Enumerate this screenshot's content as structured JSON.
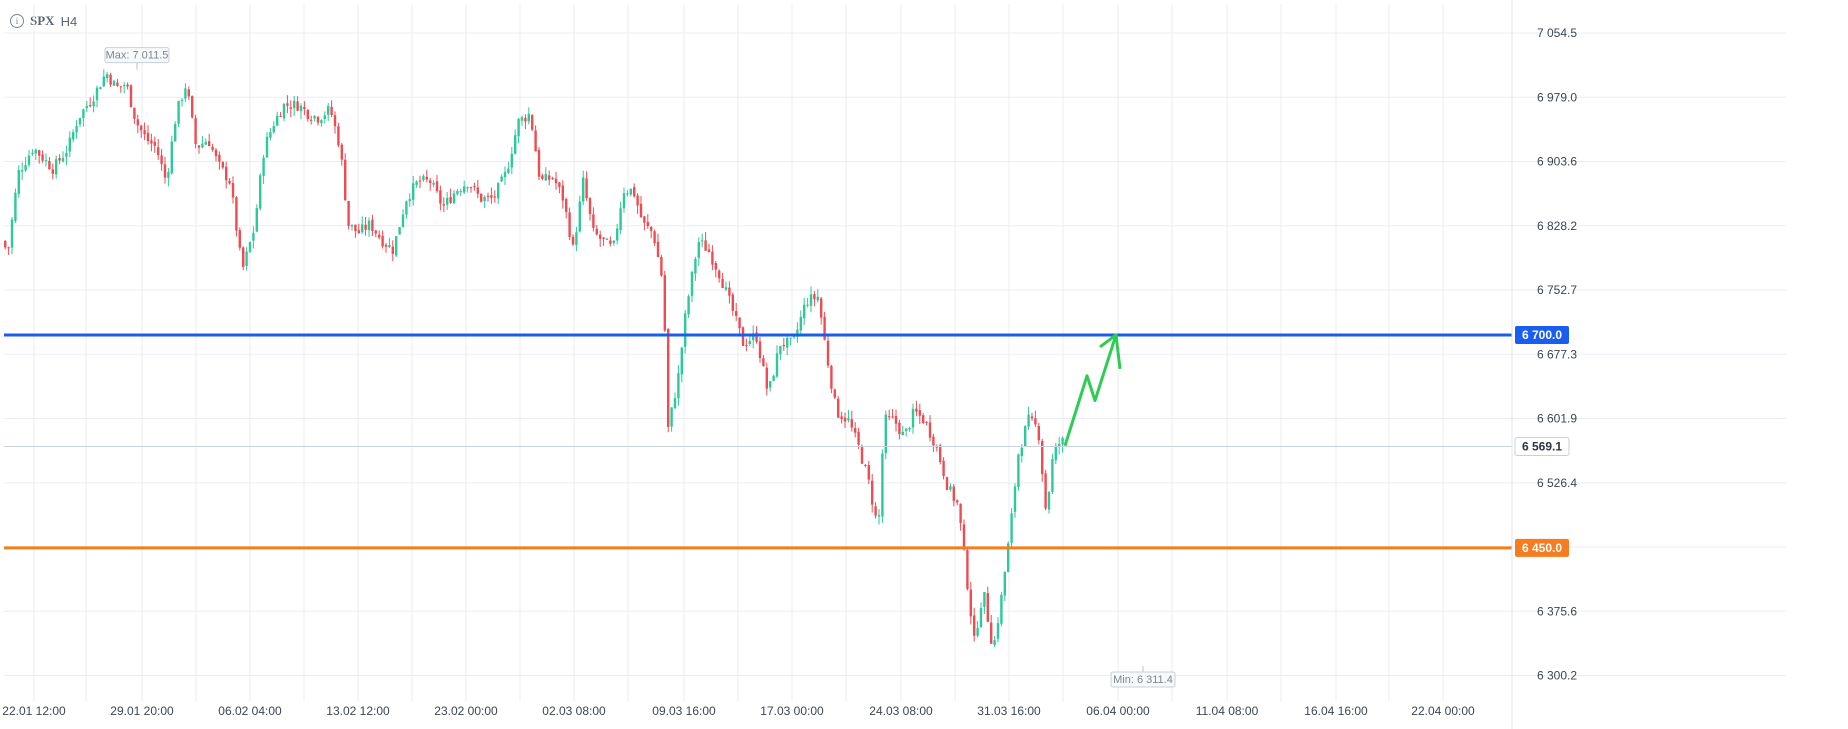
{
  "header": {
    "info_icon": "info-icon",
    "symbol": "SPX",
    "timeframe": "H4"
  },
  "chart_data": {
    "type": "candlestick",
    "symbol": "SPX",
    "timeframe": "H4",
    "x_tick_labels": [
      "22.01 12:00",
      "29.01 20:00",
      "06.02 04:00",
      "13.02 12:00",
      "23.02 00:00",
      "02.03 08:00",
      "09.03 16:00",
      "17.03 00:00",
      "24.03 08:00",
      "31.03 16:00",
      "06.04 00:00",
      "11.04 08:00",
      "16.04 16:00",
      "22.04 00:00"
    ],
    "y_tick_labels": [
      "7 054.5",
      "6 979.0",
      "6 903.6",
      "6 828.2",
      "6 752.7",
      "6 677.3",
      "6 601.9",
      "6 526.4",
      "6 375.6",
      "6 300.2"
    ],
    "y_ticks": [
      7054.5,
      6979.0,
      6903.6,
      6828.2,
      6752.7,
      6677.3,
      6601.9,
      6526.4,
      6451.0,
      6375.6,
      6300.2
    ],
    "ylim": [
      6290,
      7070
    ],
    "grid": true,
    "max_label": "Max: 7 011.5",
    "max_value": 7011.5,
    "min_label": "Min: 6 311.4",
    "min_value": 6311.4,
    "current_price_label": "6 569.1",
    "current_price": 6569.1,
    "levels": [
      {
        "label": "6 700.0",
        "value": 6700.0,
        "color": "#1a5ef0"
      },
      {
        "label": "6 450.0",
        "value": 6450.0,
        "color": "#f57c1f"
      }
    ],
    "projection_arrow": {
      "color": "#2ecc52",
      "points": [
        [
          1065,
          6570
        ],
        [
          1087,
          6652
        ],
        [
          1095,
          6623
        ],
        [
          1116,
          6700
        ]
      ]
    },
    "anchors": [
      [
        0,
        6810
      ],
      [
        10,
        6800
      ],
      [
        20,
        6890
      ],
      [
        35,
        6920
      ],
      [
        55,
        6895
      ],
      [
        70,
        6920
      ],
      [
        80,
        6955
      ],
      [
        95,
        6980
      ],
      [
        108,
        7008
      ],
      [
        118,
        6990
      ],
      [
        128,
        6995
      ],
      [
        138,
        6950
      ],
      [
        148,
        6930
      ],
      [
        158,
        6920
      ],
      [
        168,
        6880
      ],
      [
        178,
        6960
      ],
      [
        188,
        6995
      ],
      [
        198,
        6920
      ],
      [
        210,
        6930
      ],
      [
        220,
        6900
      ],
      [
        232,
        6880
      ],
      [
        244,
        6775
      ],
      [
        256,
        6825
      ],
      [
        266,
        6920
      ],
      [
        276,
        6950
      ],
      [
        286,
        6970
      ],
      [
        300,
        6970
      ],
      [
        310,
        6960
      ],
      [
        320,
        6955
      ],
      [
        332,
        6965
      ],
      [
        342,
        6920
      ],
      [
        350,
        6830
      ],
      [
        360,
        6820
      ],
      [
        372,
        6830
      ],
      [
        385,
        6810
      ],
      [
        395,
        6800
      ],
      [
        408,
        6860
      ],
      [
        420,
        6880
      ],
      [
        432,
        6880
      ],
      [
        445,
        6850
      ],
      [
        458,
        6870
      ],
      [
        470,
        6880
      ],
      [
        482,
        6860
      ],
      [
        495,
        6860
      ],
      [
        508,
        6890
      ],
      [
        520,
        6950
      ],
      [
        532,
        6960
      ],
      [
        542,
        6880
      ],
      [
        555,
        6885
      ],
      [
        565,
        6860
      ],
      [
        575,
        6800
      ],
      [
        585,
        6880
      ],
      [
        595,
        6820
      ],
      [
        605,
        6810
      ],
      [
        615,
        6800
      ],
      [
        625,
        6870
      ],
      [
        635,
        6870
      ],
      [
        645,
        6830
      ],
      [
        655,
        6820
      ],
      [
        665,
        6760
      ],
      [
        670,
        6590
      ],
      [
        680,
        6650
      ],
      [
        688,
        6730
      ],
      [
        700,
        6810
      ],
      [
        710,
        6800
      ],
      [
        722,
        6770
      ],
      [
        734,
        6730
      ],
      [
        745,
        6690
      ],
      [
        758,
        6700
      ],
      [
        770,
        6630
      ],
      [
        782,
        6690
      ],
      [
        795,
        6690
      ],
      [
        808,
        6740
      ],
      [
        820,
        6745
      ],
      [
        828,
        6680
      ],
      [
        838,
        6610
      ],
      [
        850,
        6600
      ],
      [
        860,
        6570
      ],
      [
        870,
        6530
      ],
      [
        880,
        6470
      ],
      [
        886,
        6600
      ],
      [
        896,
        6600
      ],
      [
        906,
        6580
      ],
      [
        916,
        6610
      ],
      [
        926,
        6600
      ],
      [
        938,
        6570
      ],
      [
        950,
        6520
      ],
      [
        960,
        6500
      ],
      [
        968,
        6420
      ],
      [
        976,
        6340
      ],
      [
        985,
        6400
      ],
      [
        995,
        6330
      ],
      [
        1003,
        6390
      ],
      [
        1012,
        6470
      ],
      [
        1020,
        6560
      ],
      [
        1030,
        6600
      ],
      [
        1040,
        6590
      ],
      [
        1048,
        6490
      ],
      [
        1055,
        6560
      ],
      [
        1062,
        6575
      ]
    ]
  }
}
